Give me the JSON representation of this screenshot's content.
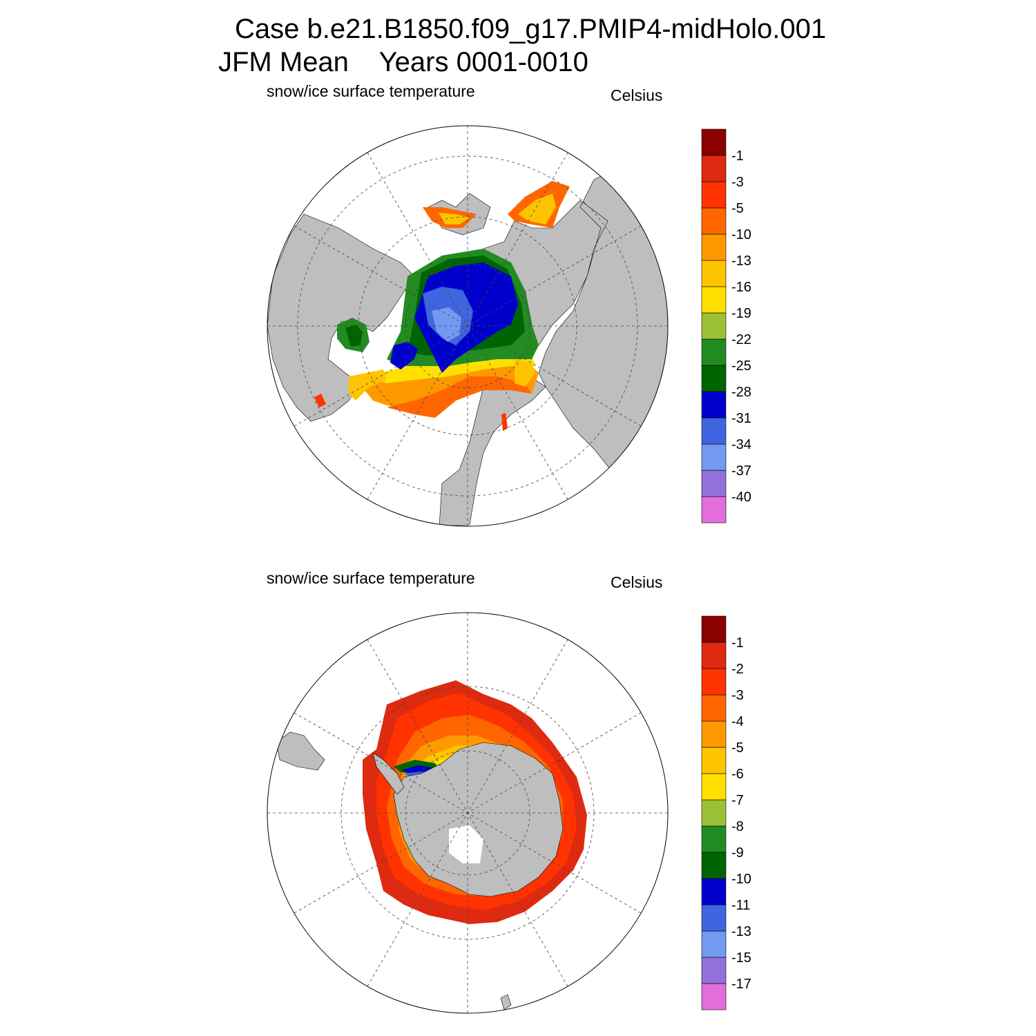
{
  "header": {
    "case_line": "Case b.e21.B1850.f09_g17.PMIP4-midHolo.001",
    "period_line": "JFM Mean    Years 0001-0010"
  },
  "colors": {
    "land": "#bebebe",
    "unfilled": "#ffffff",
    "palette": [
      "#e36ddb",
      "#9370db",
      "#7399f0",
      "#3f66e0",
      "#0000cd",
      "#006400",
      "#228b22",
      "#9bbf35",
      "#ffe000",
      "#ffc400",
      "#ff9900",
      "#ff6600",
      "#ff3300",
      "#dd2a10",
      "#8b0000"
    ]
  },
  "panels": [
    {
      "id": "north",
      "field_label": "snow/ice surface temperature",
      "units_label": "Celsius",
      "colorbar_levels": [
        "-40",
        "-37",
        "-34",
        "-31",
        "-28",
        "-25",
        "-22",
        "-19",
        "-16",
        "-13",
        "-10",
        "-5",
        "-3",
        "-1"
      ]
    },
    {
      "id": "south",
      "field_label": "snow/ice surface temperature",
      "units_label": "Celsius",
      "colorbar_levels": [
        "-17",
        "-15",
        "-13",
        "-11",
        "-10",
        "-9",
        "-8",
        "-7",
        "-6",
        "-5",
        "-4",
        "-3",
        "-2",
        "-1"
      ]
    }
  ]
}
